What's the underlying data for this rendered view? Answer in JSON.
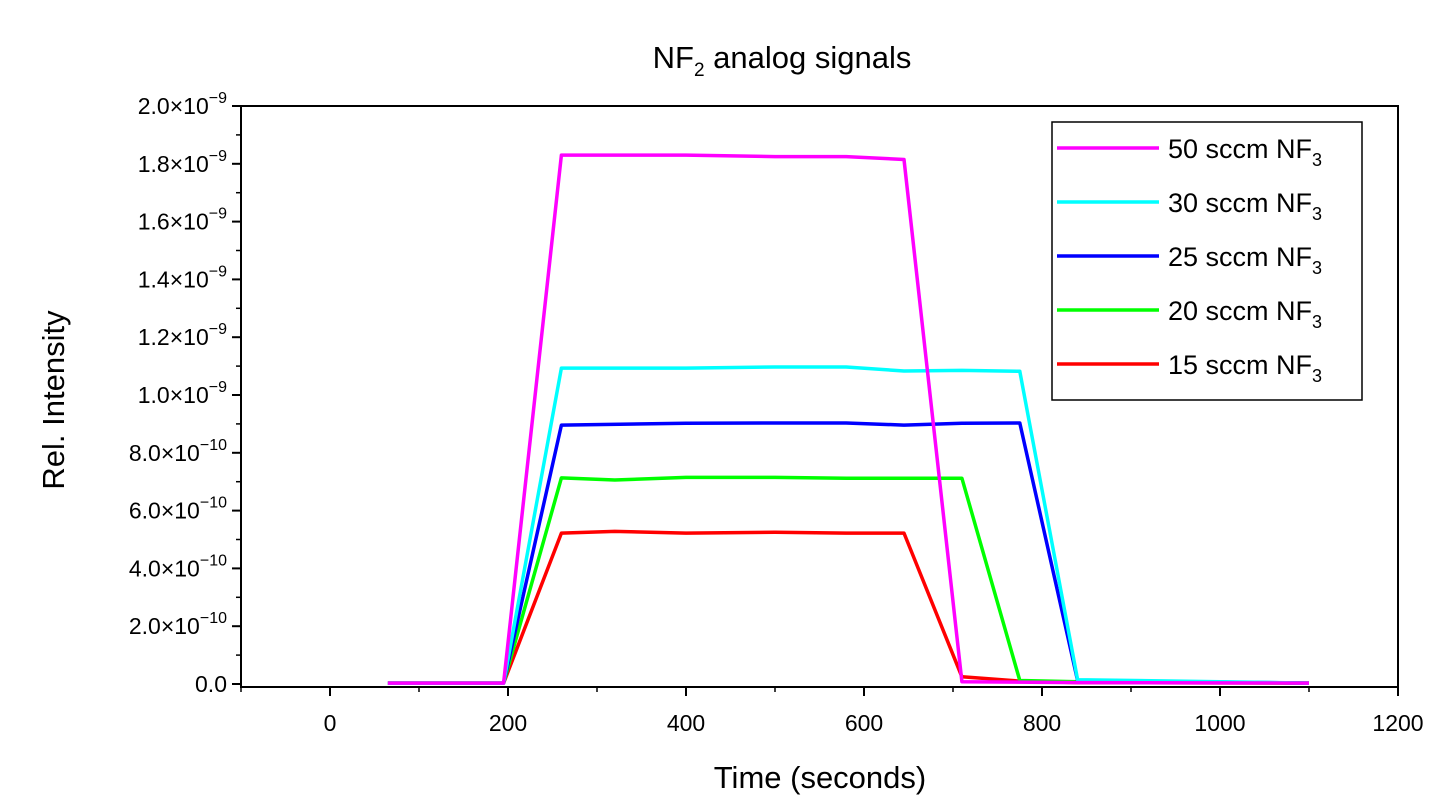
{
  "chart_data": {
    "type": "line",
    "title": "NF",
    "title_subscript": "2",
    "title_suffix": " analog signals",
    "xlabel": "Time (seconds)",
    "ylabel": "Rel. Intensity",
    "xlim": [
      -100,
      1200
    ],
    "ylim": [
      0,
      2e-09
    ],
    "grid": false,
    "legend_position": "top-right",
    "x_ticks": [
      0,
      200,
      400,
      600,
      800,
      1000,
      1200
    ],
    "x_tick_labels": [
      "0",
      "200",
      "400",
      "600",
      "800",
      "1000",
      "1200"
    ],
    "y_ticks": [
      0,
      2e-10,
      4e-10,
      6e-10,
      8e-10,
      1e-09,
      1.2e-09,
      1.4e-09,
      1.6e-09,
      1.8e-09,
      2e-09
    ],
    "y_tick_labels": [
      {
        "mantissa": "0.0",
        "exp": ""
      },
      {
        "mantissa": "2.0×10",
        "exp": "−10"
      },
      {
        "mantissa": "4.0×10",
        "exp": "−10"
      },
      {
        "mantissa": "6.0×10",
        "exp": "−10"
      },
      {
        "mantissa": "8.0×10",
        "exp": "−10"
      },
      {
        "mantissa": "1.0×10",
        "exp": "−9"
      },
      {
        "mantissa": "1.2×10",
        "exp": "−9"
      },
      {
        "mantissa": "1.4×10",
        "exp": "−9"
      },
      {
        "mantissa": "1.6×10",
        "exp": "−9"
      },
      {
        "mantissa": "1.8×10",
        "exp": "−9"
      },
      {
        "mantissa": "2.0×10",
        "exp": "−9"
      }
    ],
    "series": [
      {
        "name": "50 sccm NF",
        "name_subscript": "3",
        "color": "#ff00ff",
        "x": [
          65,
          195,
          260,
          400,
          500,
          580,
          645,
          710,
          840,
          1100
        ],
        "y": [
          3e-12,
          3e-12,
          1.83e-09,
          1.83e-09,
          1.825e-09,
          1.825e-09,
          1.815e-09,
          8e-12,
          5e-12,
          3e-12
        ]
      },
      {
        "name": "30 sccm NF",
        "name_subscript": "3",
        "color": "#00ffff",
        "x": [
          65,
          195,
          260,
          400,
          500,
          580,
          645,
          710,
          775,
          840,
          1100
        ],
        "y": [
          3e-12,
          3e-12,
          1.093e-09,
          1.093e-09,
          1.097e-09,
          1.097e-09,
          1.083e-09,
          1.085e-09,
          1.082e-09,
          1.5e-11,
          3e-12
        ]
      },
      {
        "name": "25 sccm NF",
        "name_subscript": "3",
        "color": "#0000ff",
        "x": [
          65,
          195,
          260,
          400,
          500,
          580,
          645,
          710,
          775,
          840,
          1100
        ],
        "y": [
          3e-12,
          3e-12,
          8.96e-10,
          9.02e-10,
          9.03e-10,
          9.03e-10,
          8.96e-10,
          9.02e-10,
          9.03e-10,
          1.2e-11,
          3e-12
        ]
      },
      {
        "name": "20 sccm NF",
        "name_subscript": "3",
        "color": "#00ff00",
        "x": [
          65,
          195,
          260,
          320,
          400,
          500,
          580,
          645,
          710,
          775,
          840,
          1100
        ],
        "y": [
          3e-12,
          3e-12,
          7.13e-10,
          7.06e-10,
          7.15e-10,
          7.15e-10,
          7.12e-10,
          7.12e-10,
          7.12e-10,
          1.2e-11,
          8e-12,
          3e-12
        ]
      },
      {
        "name": "15 sccm NF",
        "name_subscript": "3",
        "color": "#ff0000",
        "x": [
          65,
          195,
          260,
          320,
          400,
          500,
          580,
          645,
          710,
          775,
          840,
          1100
        ],
        "y": [
          3e-12,
          3e-12,
          5.22e-10,
          5.28e-10,
          5.22e-10,
          5.25e-10,
          5.22e-10,
          5.22e-10,
          2.5e-11,
          1e-11,
          5e-12,
          3e-12
        ]
      }
    ]
  }
}
